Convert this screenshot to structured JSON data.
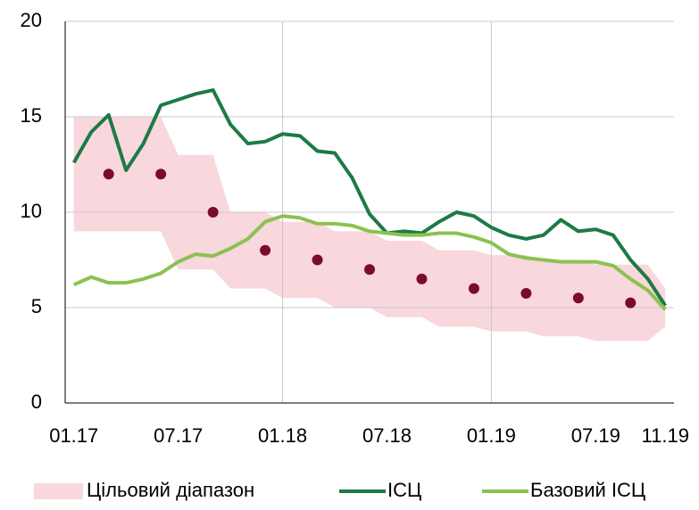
{
  "chart_data": {
    "type": "line",
    "categories": [
      "01.17",
      null,
      null,
      null,
      null,
      null,
      "07.17",
      null,
      null,
      null,
      null,
      null,
      "01.18",
      null,
      null,
      null,
      null,
      null,
      "07.18",
      null,
      null,
      null,
      null,
      null,
      "01.19",
      null,
      null,
      null,
      null,
      null,
      "07.19",
      null,
      null,
      null,
      "11.19"
    ],
    "band": {
      "name": "Цільовий діапазон",
      "color": "#f8d7dd",
      "upper": [
        15,
        15,
        15,
        15,
        15,
        15,
        13,
        13,
        13,
        10,
        10,
        10,
        9.5,
        9.5,
        9.5,
        9,
        9,
        9,
        8.5,
        8.5,
        8.5,
        8,
        8,
        8,
        7.75,
        7.75,
        7.75,
        7.5,
        7.5,
        7.5,
        7.25,
        7.25,
        7.25,
        7.25,
        6
      ],
      "lower": [
        9,
        9,
        9,
        9,
        9,
        9,
        7,
        7,
        7,
        6,
        6,
        6,
        5.5,
        5.5,
        5.5,
        5,
        5,
        5,
        4.5,
        4.5,
        4.5,
        4,
        4,
        4,
        3.75,
        3.75,
        3.75,
        3.5,
        3.5,
        3.5,
        3.25,
        3.25,
        3.25,
        3.25,
        4
      ]
    },
    "target": {
      "color": "#7a0b2f",
      "values": [
        null,
        null,
        12,
        null,
        null,
        12,
        null,
        null,
        10,
        null,
        null,
        8,
        null,
        null,
        7.5,
        null,
        null,
        7,
        null,
        null,
        6.5,
        null,
        null,
        6,
        null,
        null,
        5.75,
        null,
        null,
        5.5,
        null,
        null,
        5.25,
        null,
        null
      ]
    },
    "series": [
      {
        "name": "ІСЦ",
        "color": "#1d7a45",
        "values": [
          12.6,
          14.2,
          15.1,
          12.2,
          13.6,
          15.6,
          15.9,
          16.2,
          16.4,
          14.6,
          13.6,
          13.7,
          14.1,
          14.0,
          13.2,
          13.1,
          11.8,
          9.9,
          8.9,
          9.0,
          8.9,
          9.5,
          10.0,
          9.8,
          9.2,
          8.8,
          8.6,
          8.8,
          9.6,
          9.0,
          9.1,
          8.8,
          7.5,
          6.5,
          5.1
        ]
      },
      {
        "name": "Базовий ІСЦ",
        "color": "#8cc152",
        "values": [
          6.2,
          6.6,
          6.3,
          6.3,
          6.5,
          6.8,
          7.4,
          7.8,
          7.7,
          8.1,
          8.6,
          9.5,
          9.8,
          9.7,
          9.4,
          9.4,
          9.3,
          9.0,
          8.9,
          8.8,
          8.8,
          8.9,
          8.9,
          8.7,
          8.4,
          7.8,
          7.6,
          7.5,
          7.4,
          7.4,
          7.4,
          7.2,
          6.5,
          5.9,
          4.9
        ]
      }
    ],
    "ylim": [
      0,
      20
    ],
    "yticks": [
      0,
      5,
      10,
      15,
      20
    ],
    "grid": true,
    "xgrid": [
      "01.18",
      "01.19"
    ],
    "legend": "bottom"
  }
}
